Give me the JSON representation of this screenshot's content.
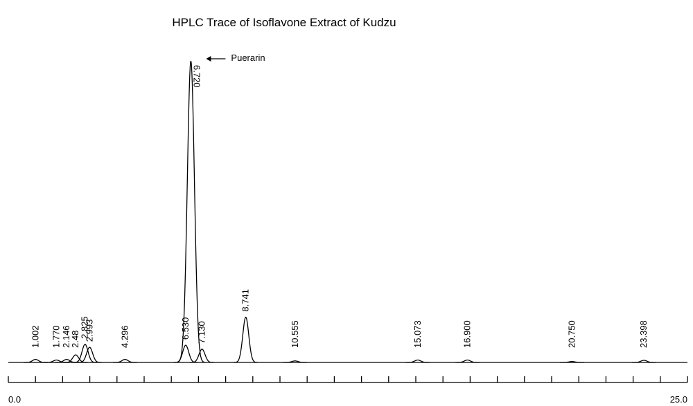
{
  "chart_data": {
    "type": "chromatogram",
    "title": "HPLC Trace of Isoflavone Extract of Kudzu",
    "annotation": "Puerarin",
    "x": [
      1.002,
      1.77,
      2.146,
      2.48,
      2.825,
      2.993,
      4.296,
      6.72,
      6.53,
      7.13,
      8.741,
      10.555,
      15.073,
      16.9,
      20.75,
      23.398
    ],
    "x_labels": [
      "1.002",
      "1.770",
      "2.146",
      "2.48",
      "2.825",
      "2.993",
      "4.296",
      "6.720",
      "6.530",
      "7.130",
      "8.741",
      "10.555",
      "15.073",
      "16.900",
      "20.750",
      "23.398"
    ],
    "values": [
      1,
      0.8,
      1,
      2.5,
      6,
      5,
      1,
      100,
      5.7,
      4.4,
      15,
      0.5,
      0.8,
      0.8,
      0.3,
      0.7
    ],
    "xlim": [
      0,
      25
    ],
    "ylim": [
      0,
      100
    ],
    "xticks": [
      {
        "value": 0,
        "label": "0.0"
      },
      {
        "value": 25,
        "label": "25.0"
      }
    ],
    "xminorticks": [
      1,
      2,
      3,
      4,
      5,
      6,
      7,
      8,
      9,
      10,
      11,
      12,
      13,
      14,
      15,
      16,
      17,
      18,
      19,
      20,
      21,
      22,
      23,
      24
    ],
    "color": "#000000"
  }
}
